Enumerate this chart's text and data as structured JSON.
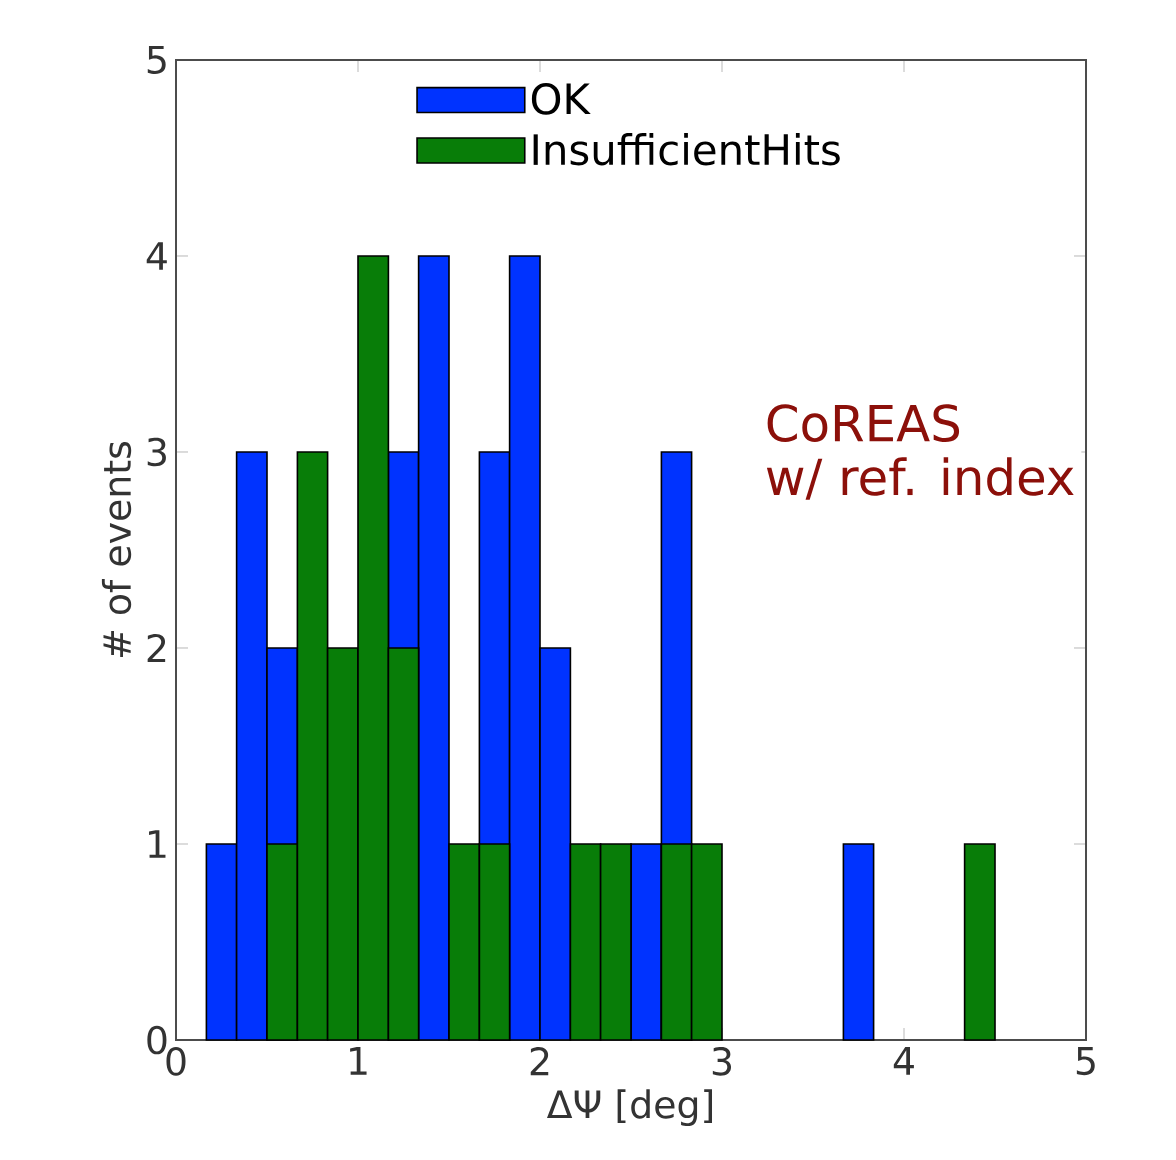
{
  "chart_data": {
    "type": "histogram",
    "xlabel": "ΔΨ [deg]",
    "ylabel": "# of events",
    "bins": [
      0.167,
      0.333,
      0.5,
      0.667,
      0.833,
      1.0,
      1.167,
      1.333,
      1.5,
      1.667,
      1.833,
      2.0,
      2.167,
      2.333,
      2.5,
      2.667,
      2.833,
      3.0,
      3.167,
      3.333,
      3.5,
      3.667,
      3.833,
      4.0,
      4.167,
      4.333,
      4.5
    ],
    "series": [
      {
        "name": "OK",
        "color": "#0033ff",
        "values": [
          1,
          3,
          2,
          null,
          null,
          null,
          3,
          4,
          null,
          3,
          4,
          2,
          null,
          null,
          1,
          3,
          null,
          0,
          0,
          0,
          0,
          1,
          0,
          0,
          0,
          null
        ]
      },
      {
        "name": "InsufficientHits",
        "color": "#087d08",
        "values": [
          0,
          0,
          1,
          3,
          2,
          4,
          2,
          0,
          1,
          1,
          0,
          0,
          1,
          1,
          0,
          1,
          1,
          0,
          0,
          0,
          0,
          0,
          0,
          0,
          0,
          1
        ]
      }
    ],
    "xlim": [
      0,
      5
    ],
    "ylim": [
      0,
      5
    ],
    "xticks": [
      0,
      1,
      2,
      3,
      4,
      5
    ],
    "yticks": [
      0,
      1,
      2,
      3,
      4,
      5
    ],
    "legend": "top",
    "grid": false,
    "annotations": [
      "CoREAS",
      "w/ ref. index"
    ]
  }
}
